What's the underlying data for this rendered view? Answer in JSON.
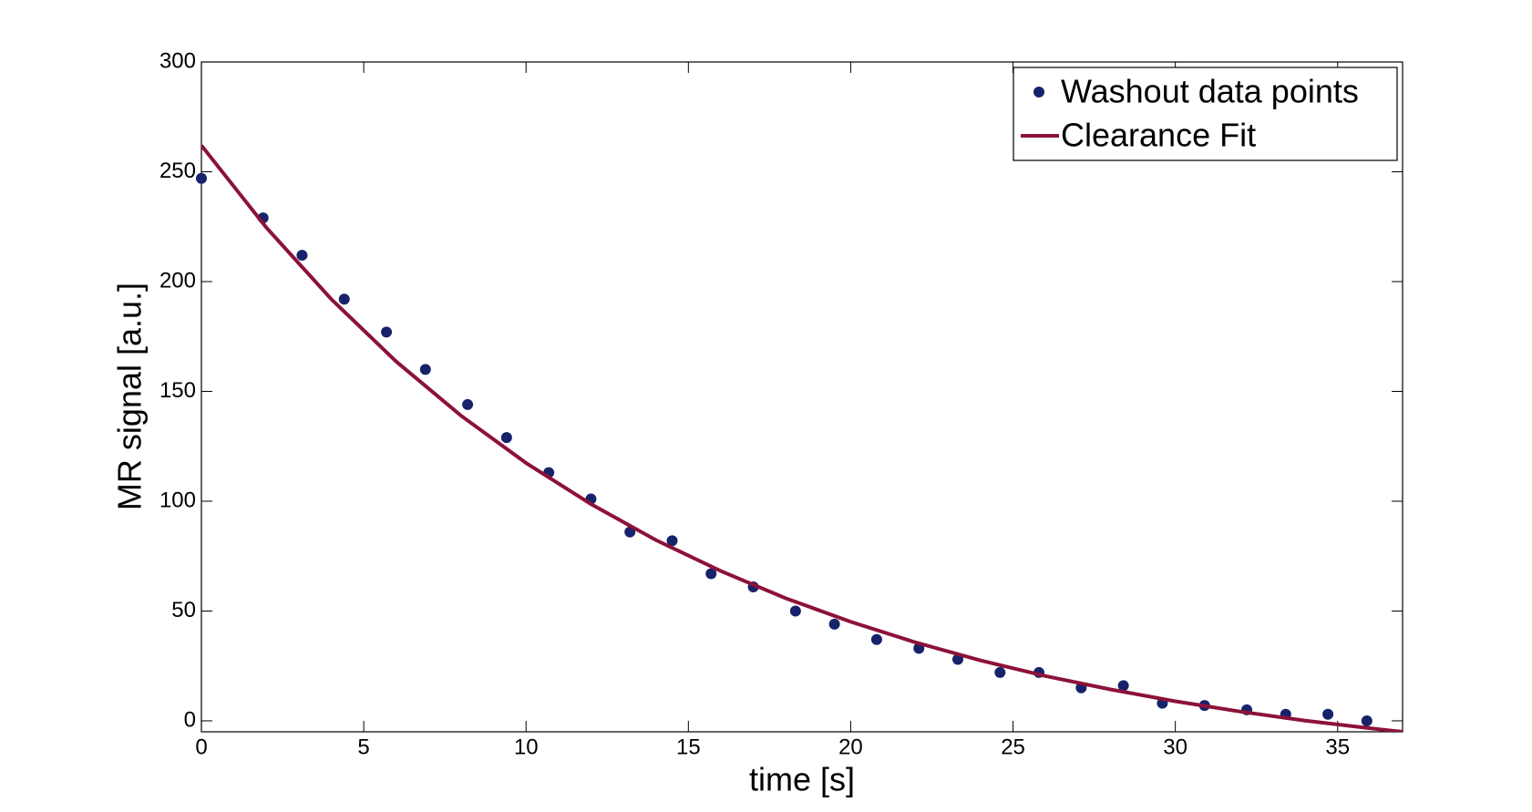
{
  "chart_data": {
    "type": "scatter",
    "xlabel": "time [s]",
    "ylabel": "MR signal [a.u.]",
    "xlim": [
      0,
      37
    ],
    "ylim": [
      -5,
      300
    ],
    "xticks": [
      0,
      5,
      10,
      15,
      20,
      25,
      30,
      35
    ],
    "yticks": [
      0,
      50,
      100,
      150,
      200,
      250,
      300
    ],
    "legend": "upper right",
    "series": [
      {
        "name": "Washout data points",
        "color": "#16236b",
        "mode": "markers",
        "x": [
          0,
          1.9,
          3.1,
          4.4,
          5.7,
          6.9,
          8.2,
          9.4,
          10.7,
          12.0,
          13.2,
          14.5,
          15.7,
          17.0,
          18.3,
          19.5,
          20.8,
          22.1,
          23.3,
          24.6,
          25.8,
          27.1,
          28.4,
          29.6,
          30.9,
          32.2,
          33.4,
          34.7,
          35.9
        ],
        "values": [
          247,
          229,
          212,
          192,
          177,
          160,
          144,
          129,
          113,
          101,
          86,
          82,
          67,
          61,
          50,
          44,
          37,
          33,
          28,
          22,
          22,
          15,
          16,
          8,
          7,
          5,
          3,
          3,
          0
        ]
      },
      {
        "name": "Clearance Fit",
        "color": "#8c1238",
        "mode": "line",
        "x": [
          0,
          2,
          4,
          6,
          8,
          10,
          12,
          14,
          16,
          18,
          20,
          22,
          24,
          26,
          28,
          30,
          32,
          34,
          36,
          37
        ],
        "values": [
          262.0,
          224.6,
          192.0,
          163.6,
          138.9,
          117.4,
          98.7,
          82.3,
          68.2,
          55.8,
          45.1,
          35.7,
          27.5,
          20.4,
          14.3,
          8.9,
          4.2,
          0.1,
          -3.4,
          -5.0
        ]
      }
    ]
  }
}
